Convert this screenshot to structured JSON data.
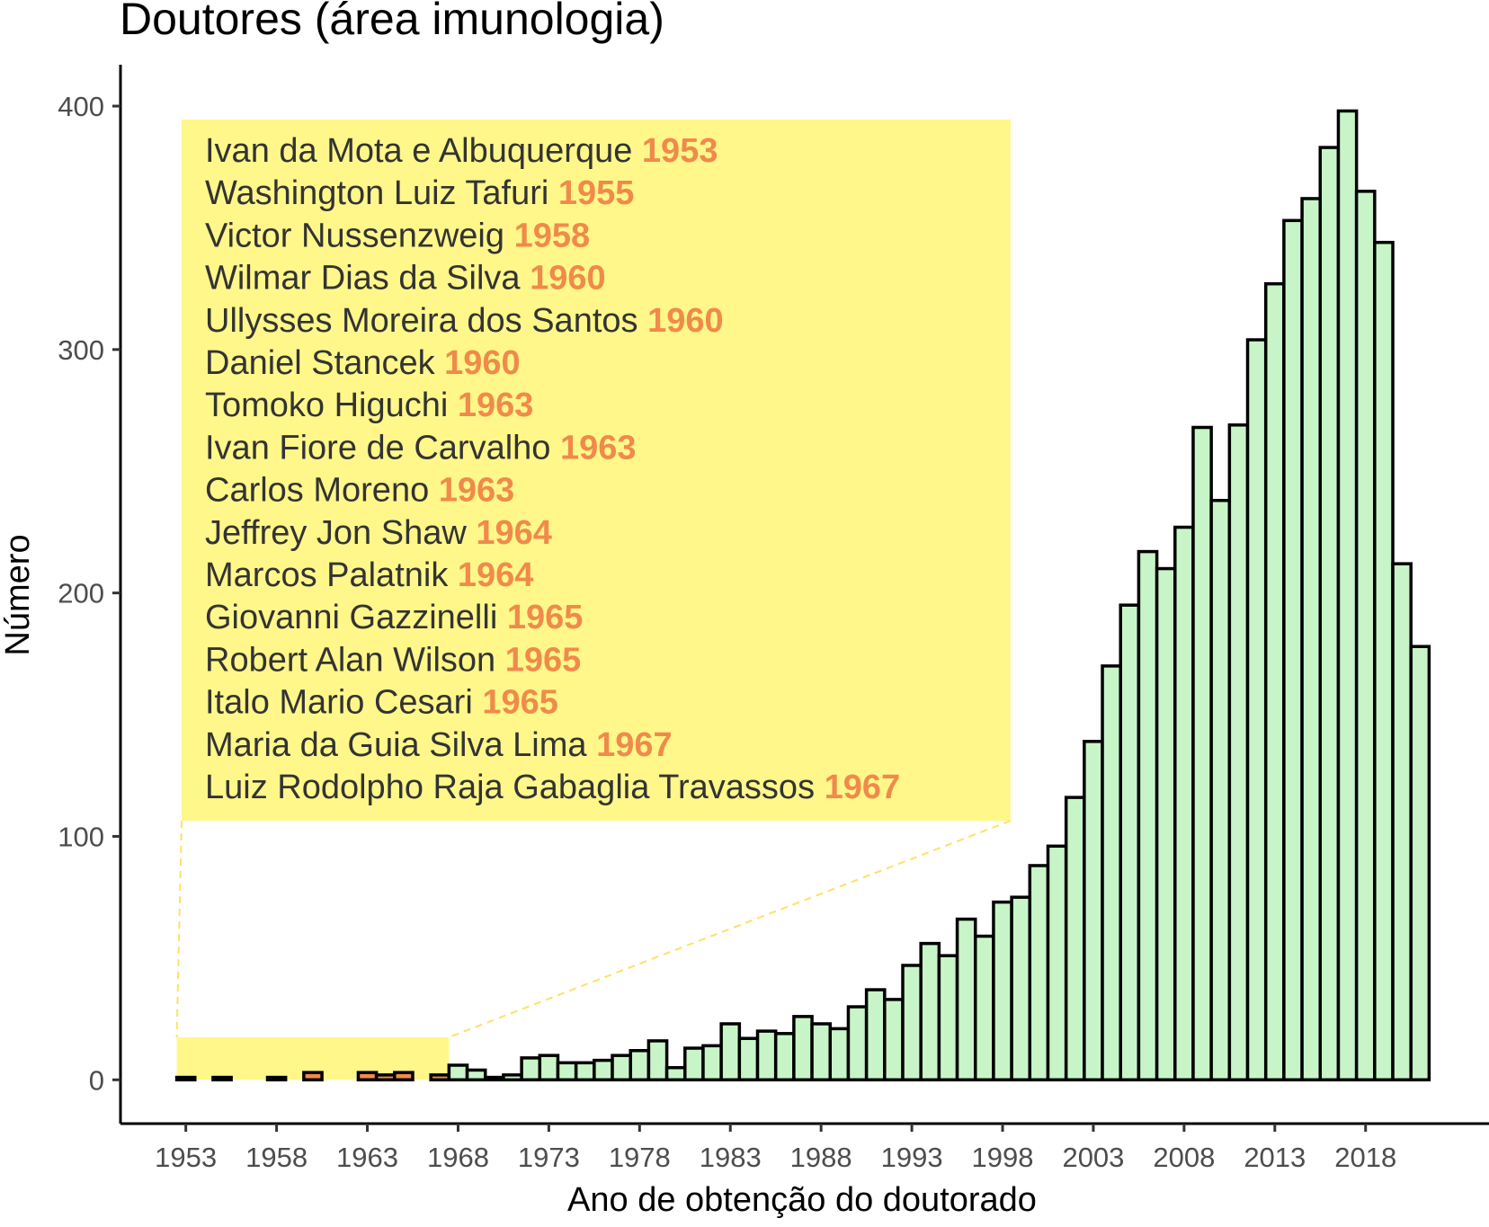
{
  "chart_data": {
    "type": "bar",
    "title": "Doutores (área imunologia)",
    "xlabel": "Ano de obtenção do doutorado",
    "ylabel": "Número",
    "ylim": [
      -18,
      417
    ],
    "xlim": [
      1949.4,
      2024.8
    ],
    "y_ticks": [
      0,
      100,
      200,
      300,
      400
    ],
    "x_ticks": [
      1953,
      1958,
      1963,
      1968,
      1973,
      1978,
      1983,
      1988,
      1993,
      1998,
      2003,
      2008,
      2013,
      2018
    ],
    "grid": false,
    "colors": {
      "bar_fill": "#c8f5c8",
      "highlight_fill": "#f08a4b",
      "bar_stroke": "#000000",
      "annotation_bg": "#fff78a",
      "year_text": "#f08a4b",
      "connector": "#ffe066"
    },
    "series": [
      {
        "x": [
          1953,
          1954,
          1955,
          1956,
          1957,
          1958,
          1959,
          1960,
          1961,
          1962,
          1963,
          1964,
          1965,
          1966,
          1967,
          1968,
          1969,
          1970,
          1971,
          1972,
          1973,
          1974,
          1975,
          1976,
          1977,
          1978,
          1979,
          1980,
          1981,
          1982,
          1983,
          1984,
          1985,
          1986,
          1987,
          1988,
          1989,
          1990,
          1991,
          1992,
          1993,
          1994,
          1995,
          1996,
          1997,
          1998,
          1999,
          2000,
          2001,
          2002,
          2003,
          2004,
          2005,
          2006,
          2007,
          2008,
          2009,
          2010,
          2011,
          2012,
          2013,
          2014,
          2015,
          2016,
          2017,
          2018,
          2019,
          2020,
          2021
        ],
        "values": [
          1,
          0,
          1,
          0,
          0,
          1,
          0,
          3,
          0,
          0,
          3,
          2,
          3,
          0,
          2,
          6,
          4,
          1,
          2,
          9,
          10,
          7,
          7,
          8,
          10,
          12,
          16,
          5,
          13,
          14,
          23,
          17,
          20,
          19,
          26,
          23,
          21,
          30,
          37,
          33,
          47,
          56,
          51,
          66,
          59,
          73,
          75,
          88,
          96,
          116,
          139,
          170,
          195,
          217,
          210,
          227,
          268,
          238,
          269,
          304,
          327,
          353,
          362,
          383,
          398,
          365,
          344,
          212,
          178
        ]
      }
    ],
    "highlight_range": [
      1953,
      1967
    ],
    "highlight_years": [
      1953,
      1955,
      1958,
      1960,
      1963,
      1964,
      1965,
      1967
    ],
    "annotation": {
      "entries": [
        {
          "name": "Ivan da Mota e Albuquerque",
          "year": "1953"
        },
        {
          "name": "Washington Luiz Tafuri",
          "year": "1955"
        },
        {
          "name": "Victor Nussenzweig",
          "year": "1958"
        },
        {
          "name": "Wilmar Dias da Silva",
          "year": "1960"
        },
        {
          "name": "Ullysses Moreira dos Santos",
          "year": "1960"
        },
        {
          "name": "Daniel Stancek",
          "year": "1960"
        },
        {
          "name": "Tomoko Higuchi",
          "year": "1963"
        },
        {
          "name": "Ivan Fiore de Carvalho",
          "year": "1963"
        },
        {
          "name": "Carlos Moreno",
          "year": "1963"
        },
        {
          "name": "Jeffrey Jon Shaw",
          "year": "1964"
        },
        {
          "name": "Marcos Palatnik",
          "year": "1964"
        },
        {
          "name": "Giovanni Gazzinelli",
          "year": "1965"
        },
        {
          "name": "Robert Alan Wilson",
          "year": "1965"
        },
        {
          "name": "Italo Mario Cesari",
          "year": "1965"
        },
        {
          "name": "Maria da Guia Silva Lima",
          "year": "1967"
        },
        {
          "name": "Luiz Rodolpho Raja Gabaglia Travassos",
          "year": "1967"
        }
      ]
    }
  }
}
